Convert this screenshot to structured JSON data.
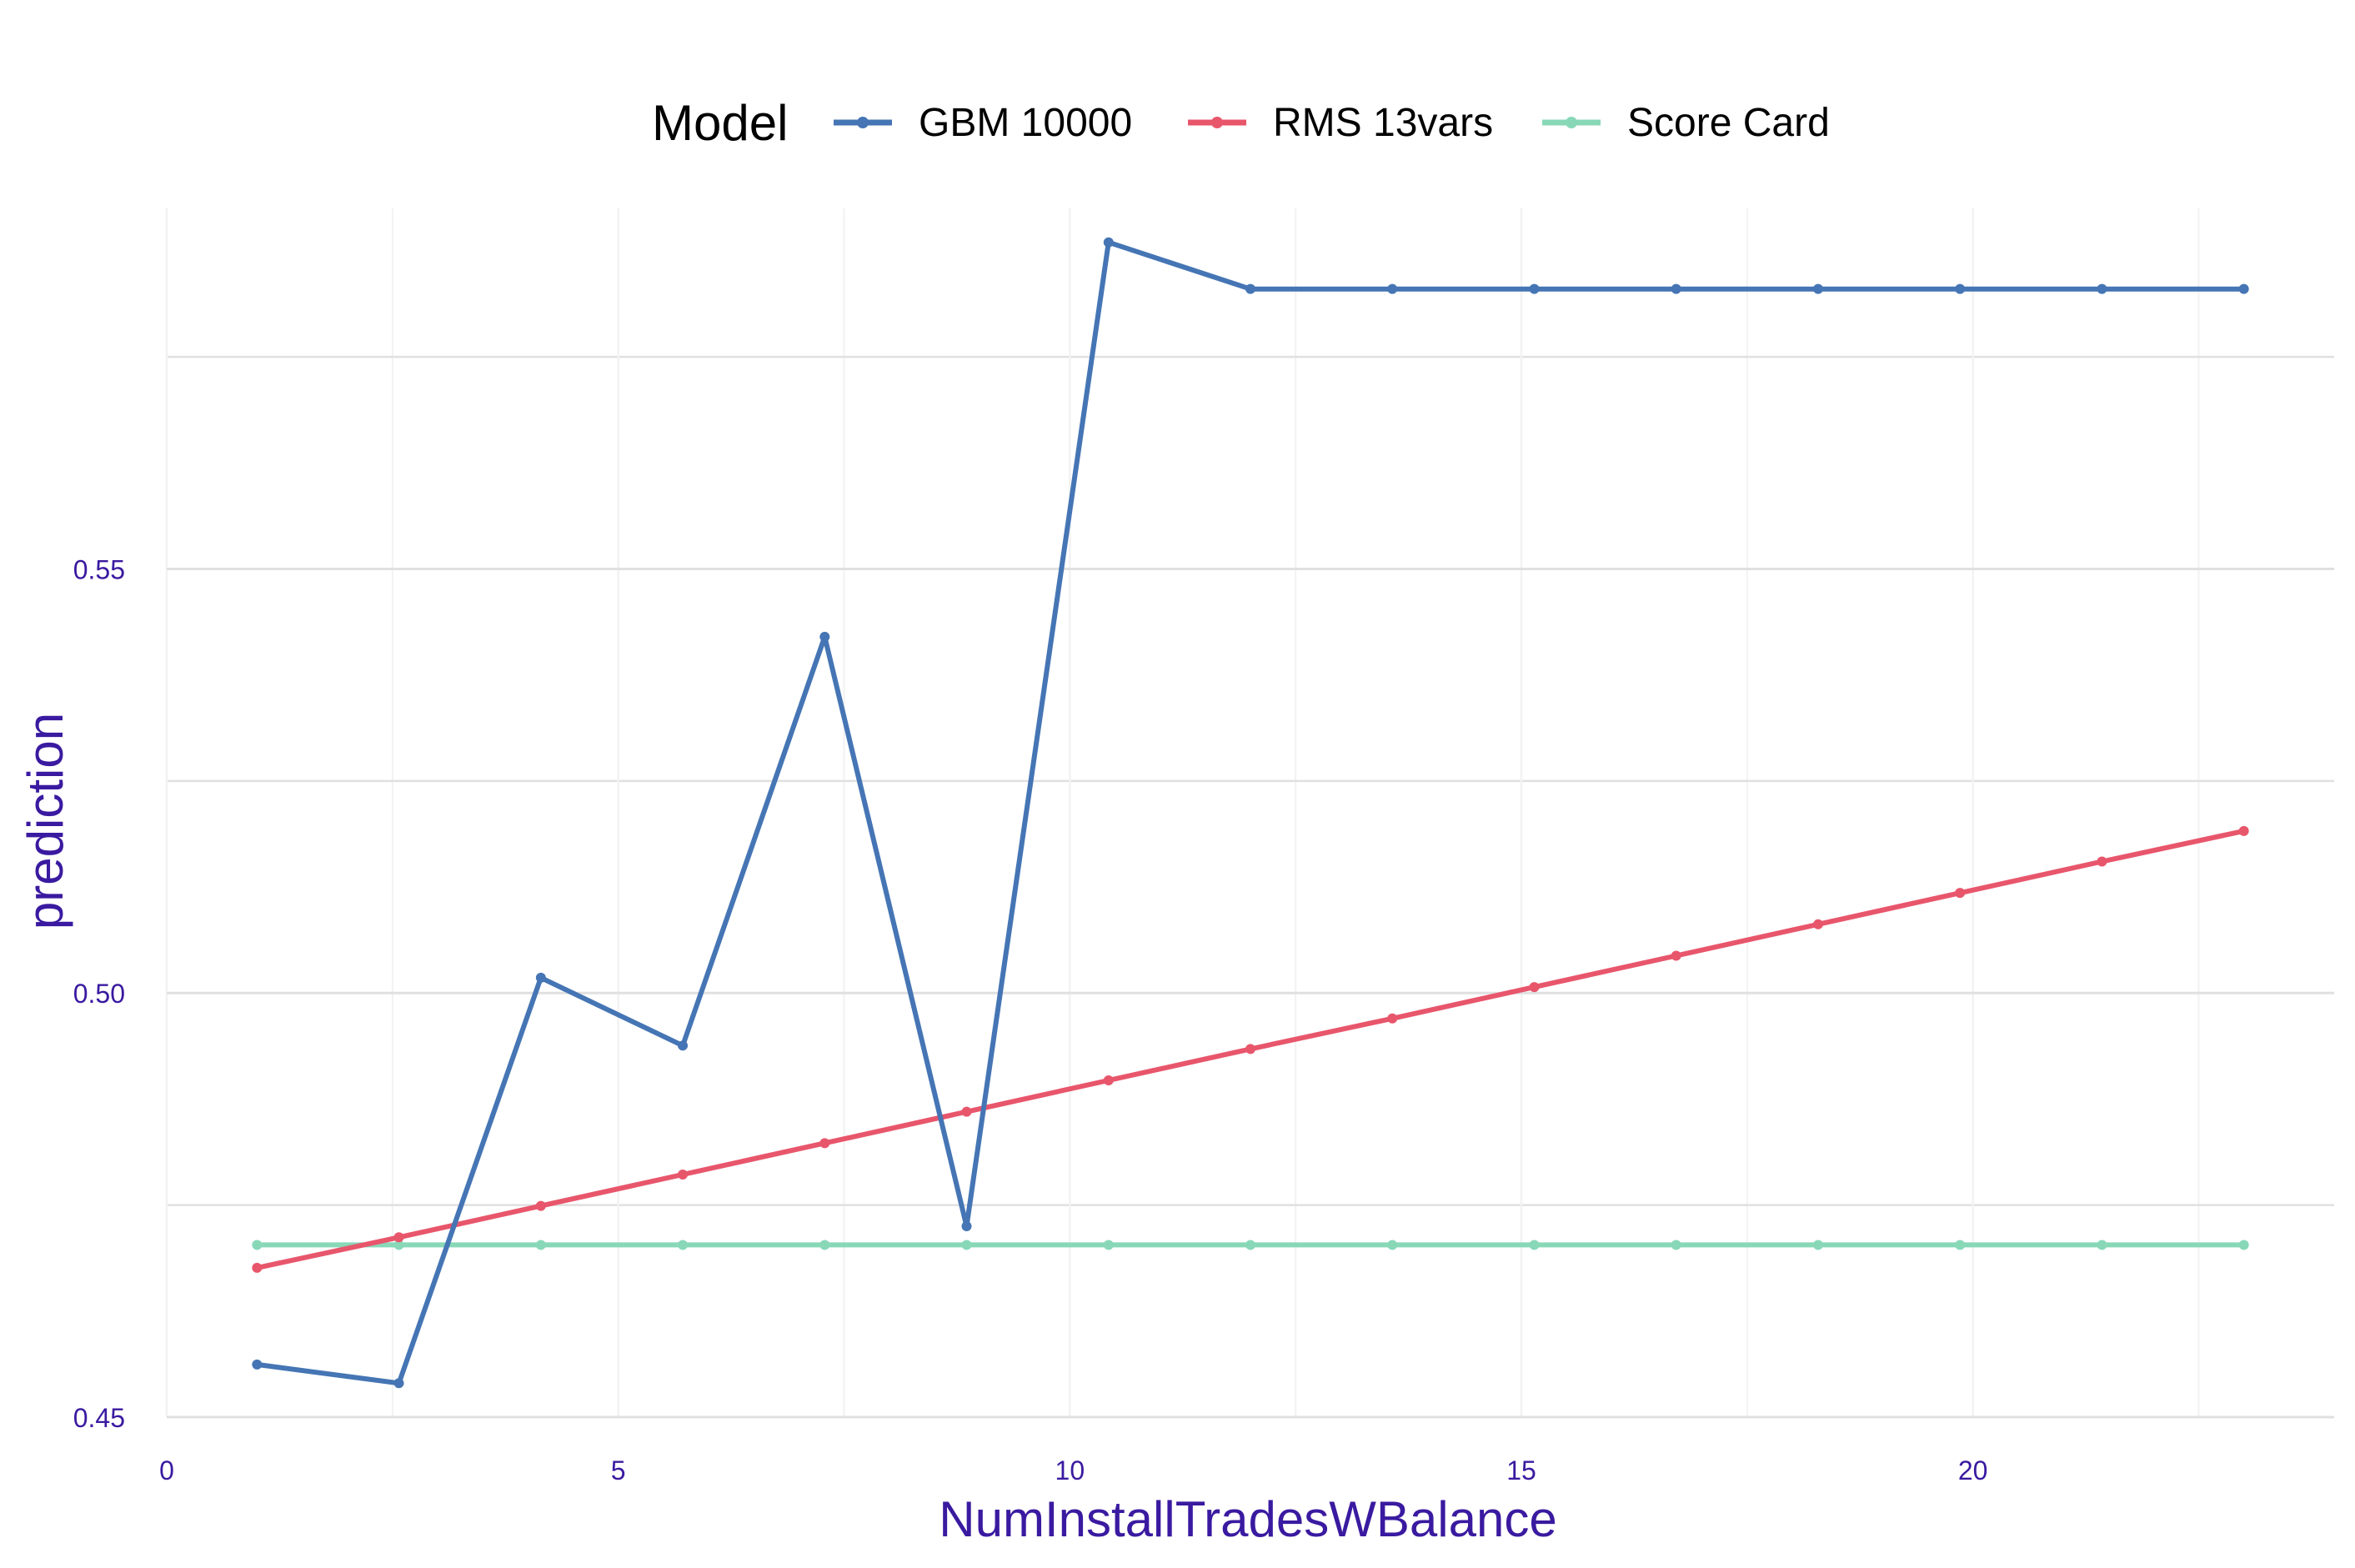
{
  "chart_data": {
    "type": "line",
    "title": "",
    "xlabel": "NumInstallTradesWBalance",
    "ylabel": "prediction",
    "xlim": [
      0,
      24
    ],
    "ylim": [
      0.45,
      0.5925
    ],
    "x_ticks": [
      0,
      5,
      10,
      15,
      20
    ],
    "x_tick_labels": [
      "0",
      "5",
      "10",
      "15",
      "20"
    ],
    "y_ticks": [
      0.45,
      0.5,
      0.55
    ],
    "y_tick_labels": [
      "0.45",
      "0.50",
      "0.55"
    ],
    "grid": true,
    "legend": {
      "title": "Model",
      "position": "top"
    },
    "x": [
      1,
      2.571,
      4.143,
      5.714,
      7.286,
      8.857,
      10.429,
      12,
      13.571,
      15.143,
      16.714,
      18.286,
      19.857,
      21.429,
      23
    ],
    "series": [
      {
        "name": "GBM 10000",
        "color": "#4575b4",
        "values": [
          0.4562,
          0.454,
          0.5018,
          0.4938,
          0.542,
          0.4725,
          0.5885,
          0.583,
          0.583,
          0.583,
          0.583,
          0.583,
          0.583,
          0.583,
          0.583
        ]
      },
      {
        "name": "RMS 13vars",
        "color": "#e8566c",
        "values": [
          0.4676,
          0.4712,
          0.4749,
          0.4786,
          0.4823,
          0.486,
          0.4897,
          0.4934,
          0.497,
          0.5007,
          0.5044,
          0.5081,
          0.5118,
          0.5155,
          0.5191
        ]
      },
      {
        "name": "Score Card",
        "color": "#88d8b8",
        "values": [
          0.4703,
          0.4703,
          0.4703,
          0.4703,
          0.4703,
          0.4703,
          0.4703,
          0.4703,
          0.4703,
          0.4703,
          0.4703,
          0.4703,
          0.4703,
          0.4703,
          0.4703
        ]
      }
    ],
    "colors": {
      "axis_text": "#3a1aa0",
      "grid_major": "#e0e0e0",
      "grid_minor": "#f2f2f2"
    }
  }
}
